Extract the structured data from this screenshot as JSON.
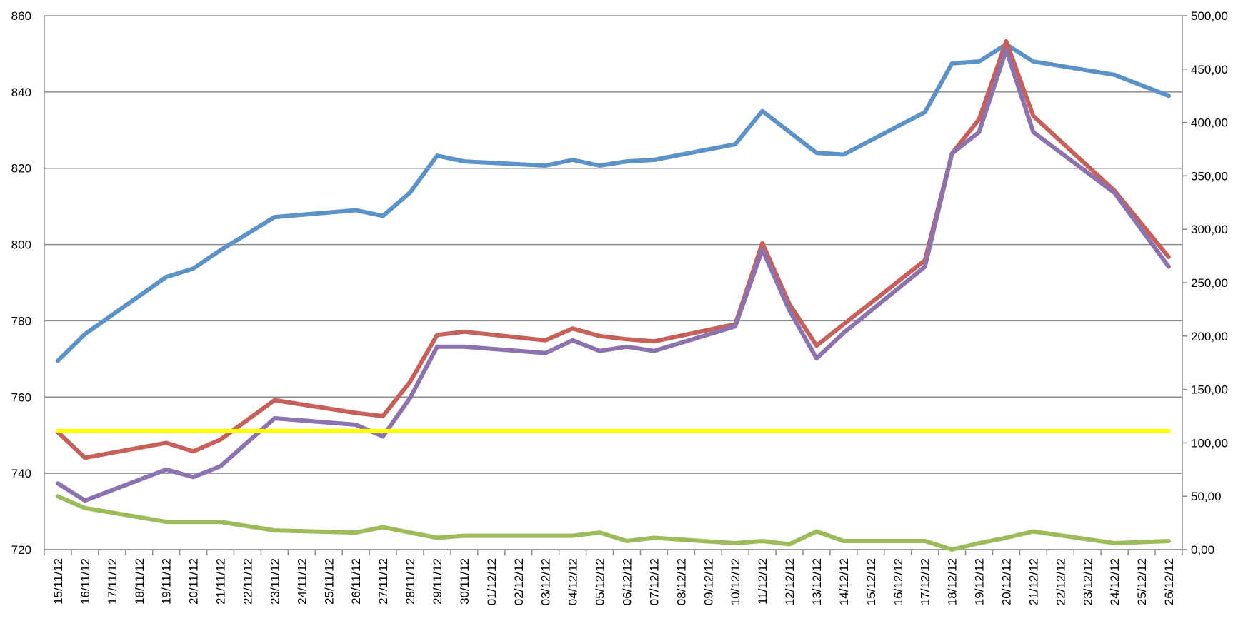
{
  "chart_data": {
    "type": "line",
    "title": "",
    "xlabel": "",
    "ylabel": "",
    "y2label": "",
    "categories": [
      "15/11/12",
      "16/11/12",
      "17/11/12",
      "18/11/12",
      "19/11/12",
      "20/11/12",
      "21/11/12",
      "22/11/12",
      "23/11/12",
      "24/11/12",
      "25/11/12",
      "26/11/12",
      "27/11/12",
      "28/11/12",
      "29/11/12",
      "30/11/12",
      "01/12/12",
      "02/12/12",
      "03/12/12",
      "04/12/12",
      "05/12/12",
      "06/12/12",
      "07/12/12",
      "08/12/12",
      "09/12/12",
      "10/12/12",
      "11/12/12",
      "12/12/12",
      "13/12/12",
      "14/12/12",
      "15/12/12",
      "16/12/12",
      "17/12/12",
      "18/12/12",
      "19/12/12",
      "20/12/12",
      "21/12/12",
      "22/12/12",
      "23/12/12",
      "24/12/12",
      "25/12/12",
      "26/12/12"
    ],
    "y_left": {
      "min": 720,
      "max": 860,
      "step": 20,
      "ticks": [
        "720",
        "740",
        "760",
        "780",
        "800",
        "820",
        "840",
        "860"
      ]
    },
    "y_right": {
      "min": 0,
      "max": 500,
      "step": 50,
      "ticks": [
        "0,00",
        "50,00",
        "100,00",
        "150,00",
        "200,00",
        "250,00",
        "300,00",
        "350,00",
        "400,00",
        "450,00",
        "500,00"
      ]
    },
    "grid": true,
    "legend": "none",
    "series": [
      {
        "axis": "left",
        "color": "#5b93c9",
        "values": [
          769.5,
          776.5,
          null,
          null,
          791.5,
          793.7,
          798.5,
          null,
          807.2,
          null,
          null,
          809.0,
          807.5,
          813.6,
          823.3,
          821.8,
          null,
          null,
          820.7,
          822.2,
          820.7,
          821.8,
          822.2,
          null,
          null,
          826.3,
          835.0,
          null,
          824.0,
          823.6,
          null,
          null,
          834.7,
          847.5,
          848.0,
          852.5,
          848.0,
          null,
          null,
          844.5,
          null,
          839.0
        ]
      },
      {
        "axis": "right",
        "color": "#c8605a",
        "values": [
          110,
          86,
          null,
          null,
          100,
          92,
          103,
          null,
          140,
          null,
          null,
          128,
          125,
          157,
          201,
          204,
          null,
          null,
          196,
          207,
          200,
          197,
          195,
          null,
          null,
          211,
          287,
          230,
          191,
          211,
          null,
          null,
          271,
          371,
          403,
          476,
          406,
          null,
          null,
          336,
          null,
          274
        ]
      },
      {
        "axis": "right",
        "color": "#8c72ae",
        "values": [
          62,
          46,
          null,
          null,
          75,
          68,
          78,
          null,
          123,
          null,
          null,
          117,
          106,
          142,
          190,
          190,
          null,
          null,
          184,
          196,
          186,
          190,
          186,
          null,
          null,
          209,
          281,
          224,
          179,
          203,
          null,
          null,
          265,
          371,
          391,
          468,
          391,
          null,
          null,
          334,
          null,
          265
        ]
      },
      {
        "axis": "right",
        "color": "#9cbb59",
        "values": [
          50,
          39,
          null,
          null,
          26,
          26,
          26,
          null,
          18,
          null,
          null,
          16,
          21,
          16,
          11,
          13,
          null,
          null,
          13,
          13,
          16,
          8,
          11,
          null,
          null,
          6,
          8,
          5,
          17,
          8,
          null,
          null,
          8,
          0,
          6,
          11,
          17,
          null,
          null,
          6,
          null,
          8
        ]
      },
      {
        "axis": "right",
        "color": "#ffff00",
        "values": [
          111,
          111,
          111,
          111,
          111,
          111,
          111,
          111,
          111,
          111,
          111,
          111,
          111,
          111,
          111,
          111,
          111,
          111,
          111,
          111,
          111,
          111,
          111,
          111,
          111,
          111,
          111,
          111,
          111,
          111,
          111,
          111,
          111,
          111,
          111,
          111,
          111,
          111,
          111,
          111,
          111,
          111
        ]
      }
    ]
  }
}
